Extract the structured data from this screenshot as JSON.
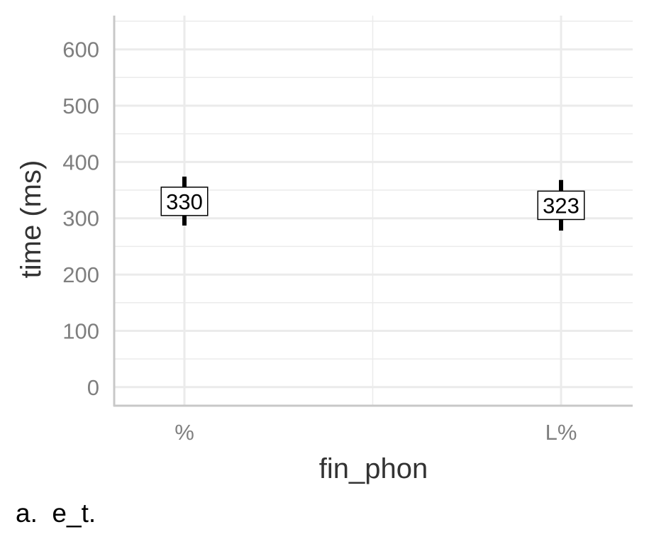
{
  "chart_data": {
    "type": "scatter",
    "categories": [
      "%",
      "L%"
    ],
    "values": [
      330,
      323
    ],
    "error_bars": [
      {
        "low": 287,
        "high": 374
      },
      {
        "low": 278,
        "high": 368
      }
    ],
    "data_labels": [
      "330",
      "323"
    ],
    "xlabel": "fin_phon",
    "ylabel": "time (ms)",
    "yticks": [
      0,
      100,
      200,
      300,
      400,
      500,
      600
    ],
    "ytick_labels": [
      "0",
      "100",
      "200",
      "300",
      "400",
      "500",
      "600"
    ],
    "ylim": [
      -33,
      660
    ],
    "grid": true,
    "legend": "none",
    "colors": {
      "grid": "#ebebeb",
      "axis": "#c8c8c8",
      "tick_text": "#7f7f7f",
      "title_text": "#333333",
      "mark": "#000000"
    }
  },
  "caption": "a.  e_t."
}
